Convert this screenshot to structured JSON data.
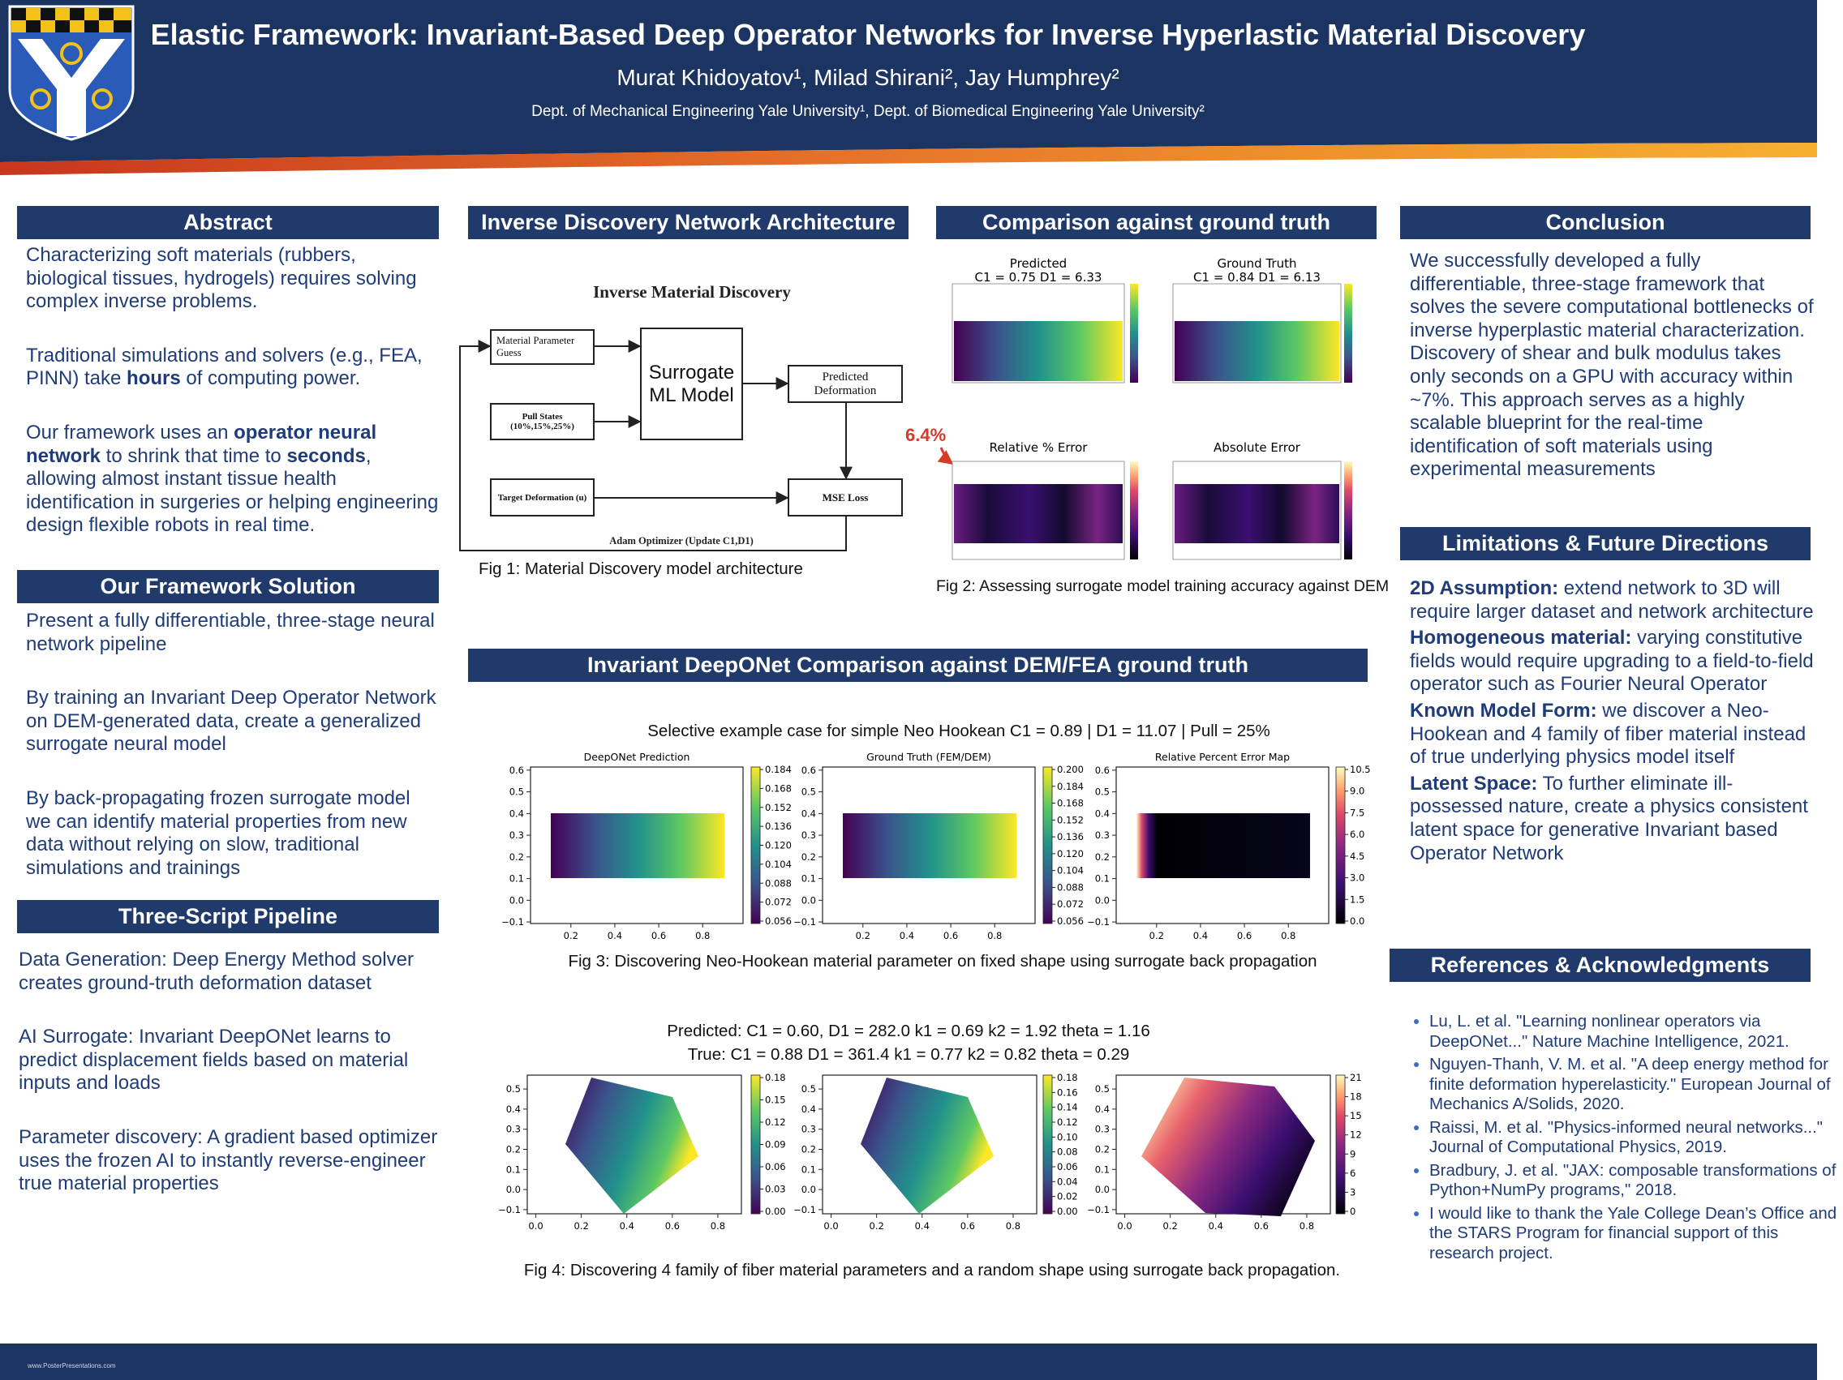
{
  "header": {
    "title": "Elastic Framework: Invariant-Based Deep Operator Networks for Inverse Hyperlastic Material Discovery",
    "authors": "Murat  Khidoyatov¹, Milad Shirani², Jay Humphrey²",
    "affiliation": "Dept. of Mechanical Engineering Yale University¹, Dept. of Biomedical Engineering Yale University²"
  },
  "abstract": {
    "heading": "Abstract",
    "paragraphs": [
      [
        "Characterizing soft materials (rubbers, biological tissues, hydrogels) requires solving complex inverse problems."
      ],
      [
        "Traditional simulations and solvers (e.g., FEA, PINN) take ",
        {
          "bold": "hours"
        },
        " of computing power."
      ],
      [
        "Our framework uses an ",
        {
          "bold": "operator neural network"
        },
        " to shrink that time to ",
        {
          "bold": "seconds"
        },
        ", allowing almost instant tissue health identification in surgeries or helping engineering design flexible robots in real time."
      ]
    ]
  },
  "solution": {
    "heading": "Our Framework Solution",
    "paragraphs": [
      "Present a fully differentiable, three-stage neural network pipeline",
      "By training an Invariant Deep Operator Network on DEM-generated data, create a generalized surrogate neural model",
      "By back-propagating frozen surrogate model we can identify material properties from new data without relying on slow, traditional simulations and trainings"
    ]
  },
  "pipeline": {
    "heading": "Three-Script Pipeline",
    "paragraphs": [
      "Data Generation: Deep Energy Method solver creates ground-truth deformation dataset",
      "AI Surrogate: Invariant DeepONet learns to predict displacement fields based on material inputs and loads",
      "Parameter discovery: A gradient based optimizer uses the frozen AI to instantly reverse-engineer true material properties"
    ]
  },
  "architecture": {
    "heading": "Inverse Discovery Network Architecture",
    "diagram": {
      "title": "Inverse Material Discovery",
      "nodes": [
        "Material Parameter Guess",
        "Surrogate ML Model",
        "Pull States (10%,15%,25%)",
        "Predicted Deformation",
        "Target Deformation (u)",
        "MSE Loss"
      ],
      "optimizer": "Adam Optimizer (Update C1,D1)"
    },
    "caption": "Fig 1: Material Discovery model architecture"
  },
  "comparison": {
    "heading": "Comparison against ground truth",
    "panels": [
      {
        "title": "Predicted",
        "params": "C1 = 0.75 D1 = 6.33"
      },
      {
        "title": "Ground Truth",
        "params": "C1 = 0.84 D1 = 6.13"
      },
      {
        "title": "Relative % Error"
      },
      {
        "title": "Absolute Error"
      }
    ],
    "annotation": "6.4%",
    "caption": "Fig 2: Assessing surrogate model training accuracy against DEM"
  },
  "deeponet": {
    "heading": "Invariant DeepONet Comparison against DEM/FEA ground truth",
    "fig3": {
      "subtitle": "Selective example case for simple Neo Hookean C1 = 0.89 | D1 = 11.07 | Pull = 25%",
      "panels": [
        {
          "title": "DeepONet Prediction",
          "yticks": [
            "0.6",
            "0.5",
            "0.4",
            "0.3",
            "0.2",
            "0.1",
            "0.0",
            "−0.1"
          ],
          "xticks": [
            "0.2",
            "0.4",
            "0.6",
            "0.8"
          ],
          "cbar": [
            "0.184",
            "0.168",
            "0.152",
            "0.136",
            "0.120",
            "0.104",
            "0.088",
            "0.072",
            "0.056"
          ]
        },
        {
          "title": "Ground Truth (FEM/DEM)",
          "yticks": [
            "0.6",
            "0.5",
            "0.4",
            "0.3",
            "0.2",
            "0.1",
            "0.0",
            "−0.1"
          ],
          "xticks": [
            "0.2",
            "0.4",
            "0.6",
            "0.8"
          ],
          "cbar": [
            "0.200",
            "0.184",
            "0.168",
            "0.152",
            "0.136",
            "0.120",
            "0.104",
            "0.088",
            "0.072",
            "0.056"
          ]
        },
        {
          "title": "Relative Percent Error Map",
          "yticks": [
            "0.6",
            "0.5",
            "0.4",
            "0.3",
            "0.2",
            "0.1",
            "0.0",
            "−0.1"
          ],
          "xticks": [
            "0.2",
            "0.4",
            "0.6",
            "0.8"
          ],
          "cbar": [
            "10.5",
            "9.0",
            "7.5",
            "6.0",
            "4.5",
            "3.0",
            "1.5",
            "0.0"
          ]
        }
      ],
      "caption": "Fig 3: Discovering Neo-Hookean material parameter on fixed shape using surrogate back propagation"
    },
    "fig4": {
      "lines": [
        "Predicted: C1 = 0.60, D1 = 282.0 k1 = 0.69 k2 = 1.92 theta = 1.16",
        "True: C1 = 0.88 D1 = 361.4 k1 = 0.77 k2 = 0.82 theta = 0.29"
      ],
      "panels": [
        {
          "yticks": [
            "0.5",
            "0.4",
            "0.3",
            "0.2",
            "0.1",
            "0.0",
            "−0.1"
          ],
          "xticks": [
            "0.0",
            "0.2",
            "0.4",
            "0.6",
            "0.8"
          ],
          "cbar": [
            "0.18",
            "0.15",
            "0.12",
            "0.09",
            "0.06",
            "0.03",
            "0.00"
          ]
        },
        {
          "yticks": [
            "0.5",
            "0.4",
            "0.3",
            "0.2",
            "0.1",
            "0.0",
            "−0.1"
          ],
          "xticks": [
            "0.0",
            "0.2",
            "0.4",
            "0.6",
            "0.8"
          ],
          "cbar": [
            "0.18",
            "0.16",
            "0.14",
            "0.12",
            "0.10",
            "0.08",
            "0.06",
            "0.04",
            "0.02",
            "0.00"
          ]
        },
        {
          "yticks": [
            "0.5",
            "0.4",
            "0.3",
            "0.2",
            "0.1",
            "0.0",
            "−0.1"
          ],
          "xticks": [
            "0.0",
            "0.2",
            "0.4",
            "0.6",
            "0.8"
          ],
          "cbar": [
            "21",
            "18",
            "15",
            "12",
            "9",
            "6",
            "3",
            "0"
          ]
        }
      ],
      "caption": "Fig 4: Discovering 4 family of fiber material parameters and a random shape using surrogate back propagation."
    }
  },
  "conclusion": {
    "heading": "Conclusion",
    "text": "We successfully developed a fully differentiable, three-stage framework that solves the severe computational bottlenecks of inverse hyperplastic material characterization. Discovery of shear and bulk modulus takes only seconds on a GPU with accuracy within ~7%. This approach serves as a highly scalable blueprint for the real-time identification of soft materials using experimental measurements"
  },
  "limitations": {
    "heading": "Limitations & Future Directions",
    "items": [
      {
        "head": "2D Assumption:",
        "text": " extend network to 3D will require larger dataset and network architecture"
      },
      {
        "head": "Homogeneous material:",
        "text": " varying constitutive fields would require upgrading to a field-to-field operator such as Fourier Neural Operator"
      },
      {
        "head": "Known Model Form:",
        "text": " we discover a Neo-Hookean and 4 family of fiber material instead of true underlying physics model itself"
      },
      {
        "head": "Latent Space:",
        "text": " To further eliminate ill-possessed nature, create a physics consistent latent space for generative Invariant based Operator Network"
      }
    ]
  },
  "references": {
    "heading": "References & Acknowledgments",
    "items": [
      "Lu, L. et al. \"Learning nonlinear operators via DeepONet...\" Nature Machine Intelligence, 2021.",
      "Nguyen-Thanh, V. M. et al. \"A deep energy method for finite deformation hyperelasticity.\" European Journal of Mechanics A/Solids, 2020.",
      "Raissi, M. et al. \"Physics-informed neural networks...\" Journal of Computational Physics, 2019.",
      "Bradbury, J. et al. \"JAX: composable transformations of Python+NumPy programs,\" 2018.",
      "I would like to thank the Yale College Dean’s Office and the STARS Program for financial support of this research project."
    ]
  },
  "footer": "www.PosterPresentations.com"
}
